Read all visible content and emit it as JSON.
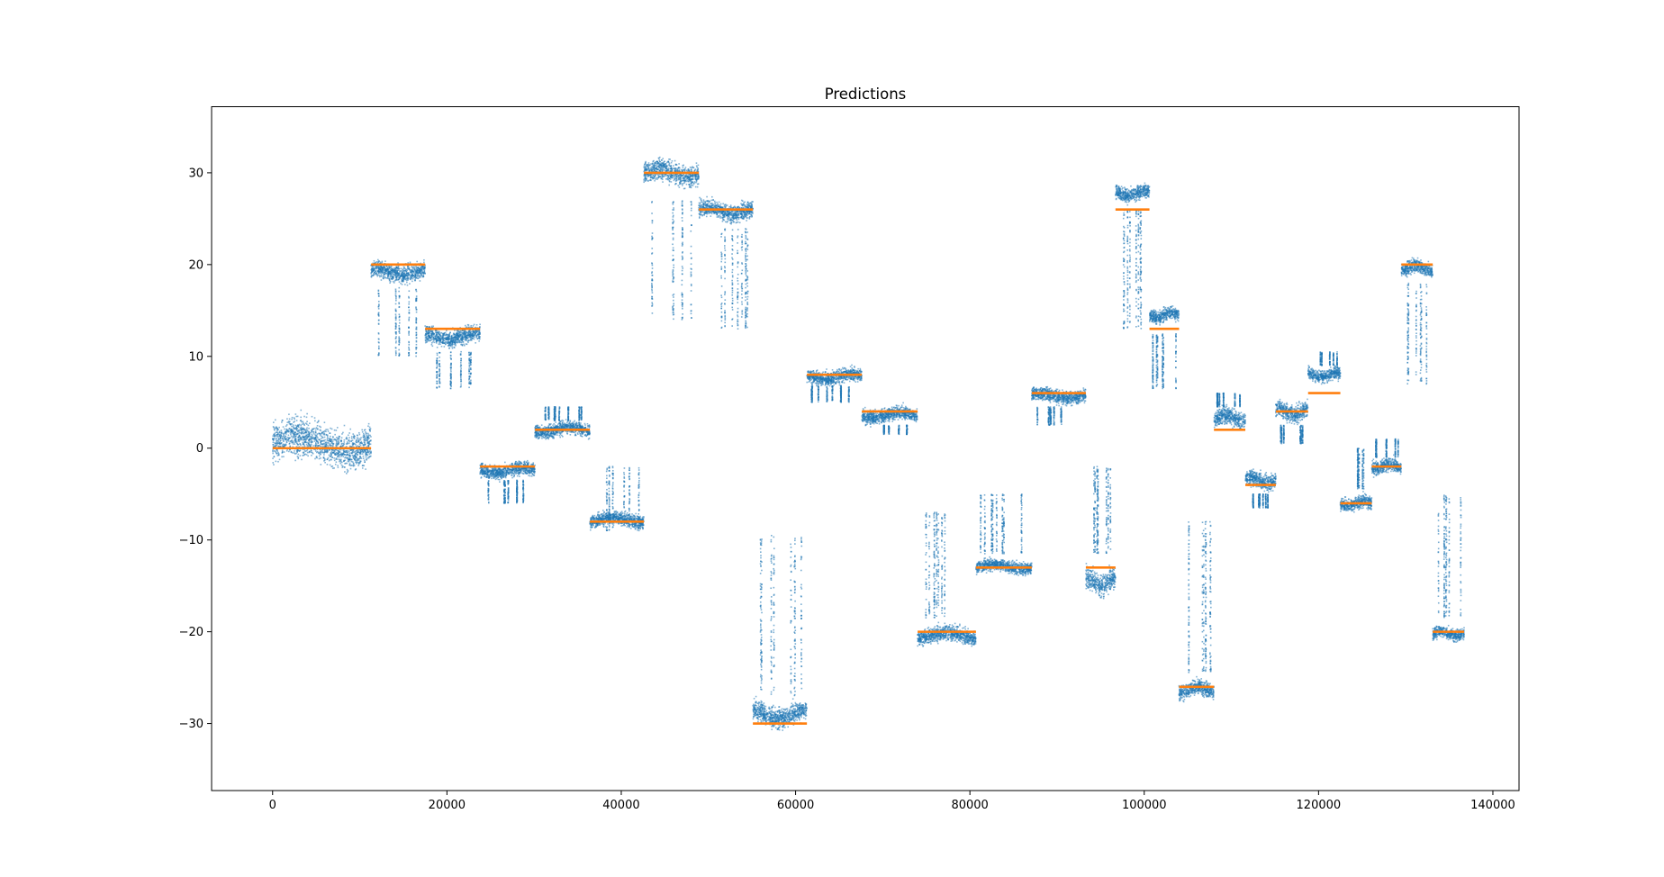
{
  "chart_data": {
    "type": "scatter",
    "title": "Predictions",
    "xlabel": "",
    "ylabel": "",
    "xlim": [
      -7000,
      143000
    ],
    "ylim": [
      -37.3,
      37.2
    ],
    "xticks": [
      0,
      20000,
      40000,
      60000,
      80000,
      100000,
      120000,
      140000
    ],
    "yticks": [
      -30,
      -20,
      -10,
      0,
      10,
      20,
      30
    ],
    "grid": false,
    "legend": "none",
    "colors": {
      "predictions": "#1f77b4",
      "target": "#ff7f0e"
    },
    "series": [
      {
        "kind": "predictions-scatter",
        "segments": [
          {
            "x_start": 0,
            "x_end": 11300,
            "center": 0.5,
            "spread": 2.2,
            "outliers_toward": 0,
            "outlier_min": 0,
            "outlier_max": 0
          },
          {
            "x_start": 11300,
            "x_end": 17500,
            "center": 19.2,
            "spread": 1.0,
            "outliers_toward": -1,
            "outlier_min": 10.0,
            "outlier_max": 17.5
          },
          {
            "x_start": 17500,
            "x_end": 23800,
            "center": 12.2,
            "spread": 1.0,
            "outliers_toward": -1,
            "outlier_min": 6.5,
            "outlier_max": 10.5
          },
          {
            "x_start": 23800,
            "x_end": 30100,
            "center": -2.4,
            "spread": 0.8,
            "outliers_toward": -1,
            "outlier_min": -6.0,
            "outlier_max": -3.5
          },
          {
            "x_start": 30100,
            "x_end": 36400,
            "center": 2.0,
            "spread": 0.8,
            "outliers_toward": 1,
            "outlier_min": 3.0,
            "outlier_max": 4.5
          },
          {
            "x_start": 36400,
            "x_end": 42600,
            "center": -7.8,
            "spread": 0.8,
            "outliers_toward": 1,
            "outlier_min": -9.0,
            "outlier_max": -2.0
          },
          {
            "x_start": 42600,
            "x_end": 48900,
            "center": 30.0,
            "spread": 1.3,
            "outliers_toward": -1,
            "outlier_min": 14.0,
            "outlier_max": 27.0
          },
          {
            "x_start": 48900,
            "x_end": 55100,
            "center": 25.9,
            "spread": 1.0,
            "outliers_toward": -1,
            "outlier_min": 13.0,
            "outlier_max": 24.0
          },
          {
            "x_start": 55100,
            "x_end": 61300,
            "center": -29.0,
            "spread": 1.2,
            "outliers_toward": 1,
            "outlier_min": -27.0,
            "outlier_max": -9.5
          },
          {
            "x_start": 61300,
            "x_end": 67600,
            "center": 7.8,
            "spread": 0.8,
            "outliers_toward": -1,
            "outlier_min": 5.0,
            "outlier_max": 6.8
          },
          {
            "x_start": 67600,
            "x_end": 74000,
            "center": 3.6,
            "spread": 0.8,
            "outliers_toward": -1,
            "outlier_min": 1.5,
            "outlier_max": 2.5
          },
          {
            "x_start": 74000,
            "x_end": 80700,
            "center": -20.4,
            "spread": 0.9,
            "outliers_toward": 1,
            "outlier_min": -18.5,
            "outlier_max": -7.0
          },
          {
            "x_start": 80700,
            "x_end": 87100,
            "center": -12.9,
            "spread": 0.7,
            "outliers_toward": 1,
            "outlier_min": -11.5,
            "outlier_max": -5.0
          },
          {
            "x_start": 87100,
            "x_end": 93300,
            "center": 5.7,
            "spread": 0.8,
            "outliers_toward": -1,
            "outlier_min": 2.5,
            "outlier_max": 4.5
          },
          {
            "x_start": 93300,
            "x_end": 96700,
            "center": -14.5,
            "spread": 1.3,
            "outliers_toward": 1,
            "outlier_min": -11.5,
            "outlier_max": -2.0
          },
          {
            "x_start": 96700,
            "x_end": 100600,
            "center": 27.8,
            "spread": 0.8,
            "outliers_toward": -1,
            "outlier_min": 13.0,
            "outlier_max": 26.0
          },
          {
            "x_start": 100600,
            "x_end": 104000,
            "center": 14.5,
            "spread": 0.8,
            "outliers_toward": -1,
            "outlier_min": 6.5,
            "outlier_max": 12.5
          },
          {
            "x_start": 104000,
            "x_end": 108000,
            "center": -26.3,
            "spread": 0.9,
            "outliers_toward": 1,
            "outlier_min": -24.5,
            "outlier_max": -8.0
          },
          {
            "x_start": 108000,
            "x_end": 111600,
            "center": 3.3,
            "spread": 1.0,
            "outliers_toward": 1,
            "outlier_min": 4.5,
            "outlier_max": 6.0
          },
          {
            "x_start": 111600,
            "x_end": 115100,
            "center": -3.5,
            "spread": 0.9,
            "outliers_toward": -1,
            "outlier_min": -6.5,
            "outlier_max": -5.0
          },
          {
            "x_start": 115100,
            "x_end": 118800,
            "center": 4.0,
            "spread": 1.0,
            "outliers_toward": -1,
            "outlier_min": 0.5,
            "outlier_max": 2.5
          },
          {
            "x_start": 118800,
            "x_end": 122500,
            "center": 8.0,
            "spread": 0.7,
            "outliers_toward": 1,
            "outlier_min": 9.0,
            "outlier_max": 10.5
          },
          {
            "x_start": 122500,
            "x_end": 126100,
            "center": -6.0,
            "spread": 0.8,
            "outliers_toward": 1,
            "outlier_min": -4.5,
            "outlier_max": 0.0
          },
          {
            "x_start": 126100,
            "x_end": 129500,
            "center": -2.0,
            "spread": 0.8,
            "outliers_toward": 1,
            "outlier_min": -1.0,
            "outlier_max": 1.0
          },
          {
            "x_start": 129500,
            "x_end": 133100,
            "center": 19.6,
            "spread": 0.8,
            "outliers_toward": -1,
            "outlier_min": 7.0,
            "outlier_max": 18.0
          },
          {
            "x_start": 133100,
            "x_end": 136700,
            "center": -20.2,
            "spread": 0.7,
            "outliers_toward": 1,
            "outlier_min": -18.5,
            "outlier_max": -5.0
          }
        ]
      },
      {
        "kind": "target-steps",
        "steps": [
          {
            "x_start": 0,
            "x_end": 11300,
            "value": 0
          },
          {
            "x_start": 11300,
            "x_end": 17500,
            "value": 20
          },
          {
            "x_start": 17500,
            "x_end": 23800,
            "value": 13
          },
          {
            "x_start": 23800,
            "x_end": 30100,
            "value": -2
          },
          {
            "x_start": 30100,
            "x_end": 36400,
            "value": 2
          },
          {
            "x_start": 36400,
            "x_end": 42600,
            "value": -8
          },
          {
            "x_start": 42600,
            "x_end": 48900,
            "value": 30
          },
          {
            "x_start": 48900,
            "x_end": 55100,
            "value": 26
          },
          {
            "x_start": 55100,
            "x_end": 61300,
            "value": -30
          },
          {
            "x_start": 61300,
            "x_end": 67600,
            "value": 8
          },
          {
            "x_start": 67600,
            "x_end": 74000,
            "value": 4
          },
          {
            "x_start": 74000,
            "x_end": 80700,
            "value": -20
          },
          {
            "x_start": 80700,
            "x_end": 87100,
            "value": -13
          },
          {
            "x_start": 87100,
            "x_end": 93300,
            "value": 6
          },
          {
            "x_start": 93300,
            "x_end": 96700,
            "value": -13
          },
          {
            "x_start": 96700,
            "x_end": 100600,
            "value": 26
          },
          {
            "x_start": 100600,
            "x_end": 104000,
            "value": 13
          },
          {
            "x_start": 104000,
            "x_end": 108000,
            "value": -26
          },
          {
            "x_start": 108000,
            "x_end": 111600,
            "value": 2
          },
          {
            "x_start": 111600,
            "x_end": 115100,
            "value": -4
          },
          {
            "x_start": 115100,
            "x_end": 118800,
            "value": 4
          },
          {
            "x_start": 118800,
            "x_end": 122500,
            "value": 6
          },
          {
            "x_start": 122500,
            "x_end": 126100,
            "value": -6
          },
          {
            "x_start": 126100,
            "x_end": 129500,
            "value": -2
          },
          {
            "x_start": 129500,
            "x_end": 133100,
            "value": 20
          },
          {
            "x_start": 133100,
            "x_end": 136700,
            "value": -20
          }
        ]
      }
    ]
  }
}
